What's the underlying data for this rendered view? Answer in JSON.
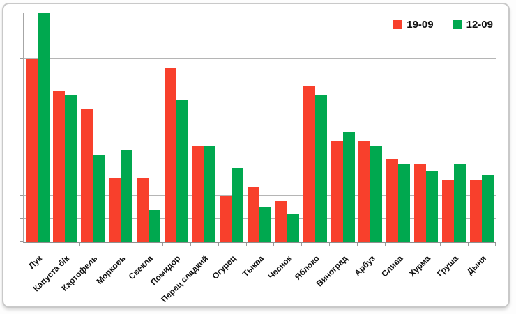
{
  "chart_data": {
    "type": "bar",
    "title": "",
    "categories": [
      "Лук",
      "Капуста б/к",
      "Картофель",
      "Морковь",
      "Свекла",
      "Помидор",
      "Перец сладкий",
      "Огурец",
      "Тыква",
      "Чеснок",
      "Яблоко",
      "Виноград",
      "Арбуз",
      "Слива",
      "Хурма",
      "Груша",
      "Дыня"
    ],
    "series": [
      {
        "name": "19-09",
        "color": "#f8402c",
        "values": [
          8.0,
          6.6,
          5.8,
          2.8,
          2.8,
          7.6,
          4.2,
          2.0,
          2.4,
          1.8,
          6.8,
          4.4,
          4.4,
          3.6,
          3.4,
          2.7,
          2.7
        ]
      },
      {
        "name": "12-09",
        "color": "#00a84f",
        "values": [
          10.0,
          6.4,
          3.8,
          4.0,
          1.4,
          6.2,
          4.2,
          3.2,
          1.5,
          1.2,
          6.4,
          4.8,
          4.2,
          3.4,
          3.1,
          3.4,
          2.9
        ]
      }
    ],
    "xlabel": "",
    "ylabel": "",
    "ylim": [
      0,
      10
    ],
    "gridline_step": 1,
    "grid": true,
    "y_axis_labels_visible": false,
    "x_labels_rotation_deg": -45,
    "legend_position": "top-right",
    "note": "First green bar (Лук 12-09) reaches the top of the plot (clipped at axis max)"
  },
  "style_colors": {
    "gridline": "#b5b5b5",
    "axis": "#8f8f8f",
    "card_border": "#c9c9c9",
    "label_text": "#111111"
  }
}
